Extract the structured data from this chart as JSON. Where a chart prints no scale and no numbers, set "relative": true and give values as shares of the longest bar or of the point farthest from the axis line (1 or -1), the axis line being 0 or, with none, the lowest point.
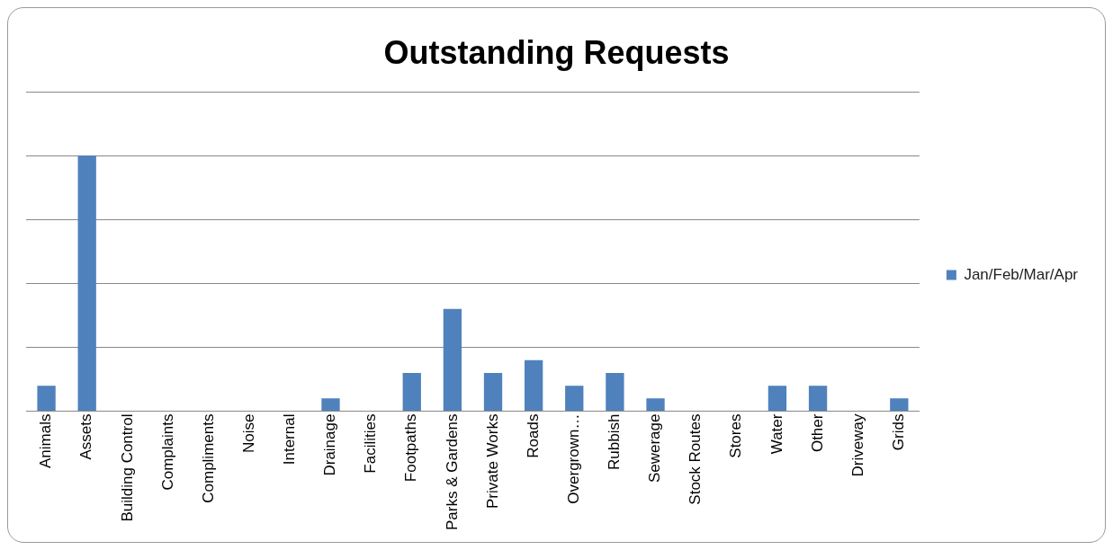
{
  "chart_data": {
    "type": "bar",
    "title": "Outstanding Requests",
    "relative": true,
    "grid": "y",
    "legend": "right",
    "categories": [
      "Animals",
      "Assets",
      "Building Control",
      "Complaints",
      "Compliments",
      "Noise",
      "Internal",
      "Drainage",
      "Facilities",
      "Footpaths",
      "Parks & Gardens",
      "Private Works",
      "Roads",
      "Overgrown…",
      "Rubbish",
      "Sewerage",
      "Stock Routes",
      "Stores",
      "Water",
      "Other",
      "Driveway",
      "Grids"
    ],
    "series": [
      {
        "name": "Jan/Feb/Mar/Apr",
        "color": "#4f81bd",
        "values": [
          0.1,
          1,
          0,
          0,
          0,
          0,
          0,
          0.05,
          0,
          0.15,
          0.4,
          0.15,
          0.2,
          0.1,
          0.15,
          0.05,
          0,
          0,
          0.1,
          0.1,
          0,
          0.05
        ]
      }
    ]
  }
}
